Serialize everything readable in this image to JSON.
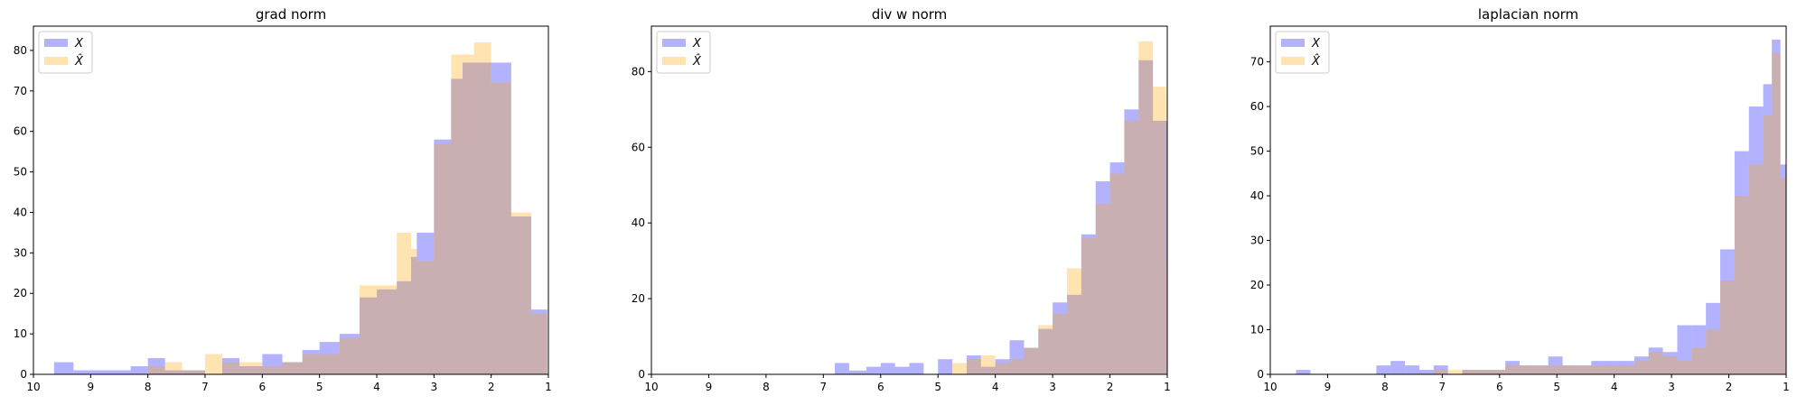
{
  "chart_data": [
    {
      "type": "bar",
      "title": "grad norm",
      "xlabel": "",
      "ylabel": "",
      "xlim": [
        10,
        1
      ],
      "ylim": [
        0,
        86
      ],
      "xticks": [
        10,
        9,
        8,
        7,
        6,
        5,
        4,
        3,
        2,
        1
      ],
      "yticks": [
        0,
        10,
        20,
        30,
        40,
        50,
        60,
        70,
        80
      ],
      "legend": {
        "placement": "top-left",
        "labels": [
          "X",
          "X̂"
        ]
      },
      "series": [
        {
          "name": "X",
          "color": "#0000ff",
          "bins": [
            [
              9.9,
              9.64,
              0
            ],
            [
              9.64,
              9.3,
              3
            ],
            [
              9.3,
              8.3,
              1
            ],
            [
              8.3,
              8.0,
              2
            ],
            [
              8.0,
              7.7,
              4
            ],
            [
              7.7,
              7.4,
              1
            ],
            [
              7.4,
              7.0,
              1
            ],
            [
              7.0,
              6.7,
              0
            ],
            [
              6.7,
              6.4,
              4
            ],
            [
              6.4,
              6.0,
              2
            ],
            [
              6.0,
              5.65,
              5
            ],
            [
              5.65,
              5.3,
              3
            ],
            [
              5.3,
              5.0,
              6
            ],
            [
              5.0,
              4.65,
              8
            ],
            [
              4.65,
              4.3,
              10
            ],
            [
              4.3,
              4.0,
              19
            ],
            [
              4.0,
              3.65,
              21
            ],
            [
              3.65,
              3.4,
              23
            ],
            [
              3.4,
              3.3,
              29
            ],
            [
              3.3,
              3.0,
              35
            ],
            [
              3.0,
              2.7,
              58
            ],
            [
              2.7,
              2.5,
              73
            ],
            [
              2.5,
              2.0,
              77
            ],
            [
              2.0,
              1.65,
              77
            ],
            [
              1.65,
              1.3,
              39
            ],
            [
              1.3,
              1.02,
              16
            ]
          ]
        },
        {
          "name": "X̂",
          "color": "#ffa500",
          "bins": [
            [
              8.0,
              7.7,
              2
            ],
            [
              7.7,
              7.4,
              3
            ],
            [
              7.4,
              7.0,
              1
            ],
            [
              7.0,
              6.7,
              5
            ],
            [
              6.7,
              6.4,
              3
            ],
            [
              6.4,
              6.0,
              3
            ],
            [
              6.0,
              5.65,
              2
            ],
            [
              5.65,
              5.3,
              3
            ],
            [
              5.3,
              5.0,
              5
            ],
            [
              5.0,
              4.65,
              5
            ],
            [
              4.65,
              4.3,
              9
            ],
            [
              4.3,
              4.0,
              22
            ],
            [
              4.0,
              3.65,
              22
            ],
            [
              3.65,
              3.4,
              35
            ],
            [
              3.4,
              3.3,
              31
            ],
            [
              3.3,
              3.0,
              28
            ],
            [
              3.0,
              2.7,
              57
            ],
            [
              2.7,
              2.5,
              79
            ],
            [
              2.5,
              2.3,
              79
            ],
            [
              2.3,
              2.0,
              82
            ],
            [
              2.0,
              1.65,
              72
            ],
            [
              1.65,
              1.3,
              40
            ],
            [
              1.3,
              1.02,
              15
            ]
          ]
        }
      ]
    },
    {
      "type": "bar",
      "title": "div w norm",
      "xlabel": "",
      "ylabel": "",
      "xlim": [
        10,
        1
      ],
      "ylim": [
        0,
        92
      ],
      "xticks": [
        10,
        9,
        8,
        7,
        6,
        5,
        4,
        3,
        2,
        1
      ],
      "yticks": [
        0,
        20,
        40,
        60,
        80
      ],
      "legend": {
        "placement": "top-left",
        "labels": [
          "X",
          "X̂"
        ]
      },
      "series": [
        {
          "name": "X",
          "color": "#0000ff",
          "bins": [
            [
              6.8,
              6.55,
              3
            ],
            [
              6.55,
              6.25,
              1
            ],
            [
              6.25,
              6.0,
              2
            ],
            [
              6.0,
              5.75,
              3
            ],
            [
              5.75,
              5.5,
              2
            ],
            [
              5.5,
              5.25,
              3
            ],
            [
              5.25,
              5.0,
              0
            ],
            [
              5.0,
              4.75,
              4
            ],
            [
              4.75,
              4.5,
              0
            ],
            [
              4.5,
              4.25,
              5
            ],
            [
              4.25,
              4.0,
              2
            ],
            [
              4.0,
              3.75,
              4
            ],
            [
              3.75,
              3.5,
              9
            ],
            [
              3.5,
              3.25,
              7
            ],
            [
              3.25,
              3.0,
              12
            ],
            [
              3.0,
              2.75,
              19
            ],
            [
              2.75,
              2.5,
              21
            ],
            [
              2.5,
              2.25,
              37
            ],
            [
              2.25,
              2.0,
              51
            ],
            [
              2.0,
              1.75,
              56
            ],
            [
              1.75,
              1.5,
              70
            ],
            [
              1.5,
              1.25,
              83
            ],
            [
              1.25,
              1.0,
              67
            ]
          ]
        },
        {
          "name": "X̂",
          "color": "#ffa500",
          "bins": [
            [
              4.75,
              4.5,
              3
            ],
            [
              4.5,
              4.25,
              4
            ],
            [
              4.25,
              4.0,
              5
            ],
            [
              4.0,
              3.75,
              3
            ],
            [
              3.75,
              3.5,
              4
            ],
            [
              3.5,
              3.25,
              7
            ],
            [
              3.25,
              3.0,
              13
            ],
            [
              3.0,
              2.75,
              16
            ],
            [
              2.75,
              2.5,
              28
            ],
            [
              2.5,
              2.25,
              36
            ],
            [
              2.25,
              2.0,
              45
            ],
            [
              2.0,
              1.75,
              53
            ],
            [
              1.75,
              1.5,
              67
            ],
            [
              1.5,
              1.25,
              88
            ],
            [
              1.25,
              1.02,
              76
            ],
            [
              1.02,
              0.98,
              30
            ]
          ]
        }
      ]
    },
    {
      "type": "bar",
      "title": "laplacian norm",
      "xlabel": "",
      "ylabel": "",
      "xlim": [
        10,
        1
      ],
      "ylim": [
        0,
        78
      ],
      "xticks": [
        10,
        9,
        8,
        7,
        6,
        5,
        4,
        3,
        2,
        1
      ],
      "yticks": [
        0,
        10,
        20,
        30,
        40,
        50,
        60,
        70
      ],
      "legend": {
        "placement": "top-left",
        "labels": [
          "X",
          "X̂"
        ]
      },
      "series": [
        {
          "name": "X",
          "color": "#0000ff",
          "bins": [
            [
              9.55,
              9.3,
              1
            ],
            [
              8.15,
              7.9,
              2
            ],
            [
              7.9,
              7.65,
              3
            ],
            [
              7.65,
              7.4,
              2
            ],
            [
              7.4,
              7.15,
              1
            ],
            [
              7.15,
              6.9,
              2
            ],
            [
              6.9,
              6.65,
              0
            ],
            [
              6.65,
              6.4,
              1
            ],
            [
              6.4,
              6.15,
              1
            ],
            [
              6.15,
              5.9,
              1
            ],
            [
              5.9,
              5.65,
              3
            ],
            [
              5.65,
              5.4,
              2
            ],
            [
              5.4,
              5.15,
              2
            ],
            [
              5.15,
              4.9,
              4
            ],
            [
              4.9,
              4.65,
              2
            ],
            [
              4.65,
              4.4,
              2
            ],
            [
              4.4,
              4.15,
              3
            ],
            [
              4.15,
              3.9,
              3
            ],
            [
              3.9,
              3.65,
              3
            ],
            [
              3.65,
              3.4,
              4
            ],
            [
              3.4,
              3.15,
              6
            ],
            [
              3.15,
              2.9,
              5
            ],
            [
              2.9,
              2.65,
              11
            ],
            [
              2.65,
              2.4,
              11
            ],
            [
              2.4,
              2.15,
              16
            ],
            [
              2.15,
              1.9,
              28
            ],
            [
              1.9,
              1.65,
              50
            ],
            [
              1.65,
              1.4,
              60
            ],
            [
              1.4,
              1.25,
              65
            ],
            [
              1.25,
              1.1,
              75
            ],
            [
              1.1,
              1.0,
              47
            ]
          ]
        },
        {
          "name": "X̂",
          "color": "#ffa500",
          "bins": [
            [
              7.15,
              6.9,
              1
            ],
            [
              6.9,
              6.65,
              1
            ],
            [
              6.65,
              6.4,
              1
            ],
            [
              6.4,
              6.15,
              1
            ],
            [
              6.15,
              5.9,
              1
            ],
            [
              5.9,
              5.65,
              2
            ],
            [
              5.65,
              5.4,
              2
            ],
            [
              5.4,
              5.15,
              2
            ],
            [
              5.15,
              4.9,
              2
            ],
            [
              4.9,
              4.65,
              2
            ],
            [
              4.65,
              4.4,
              2
            ],
            [
              4.4,
              4.15,
              2
            ],
            [
              4.15,
              3.9,
              2
            ],
            [
              3.9,
              3.65,
              2
            ],
            [
              3.65,
              3.4,
              3
            ],
            [
              3.4,
              3.15,
              5
            ],
            [
              3.15,
              2.9,
              4
            ],
            [
              2.9,
              2.65,
              3
            ],
            [
              2.65,
              2.4,
              6
            ],
            [
              2.4,
              2.15,
              10
            ],
            [
              2.15,
              1.9,
              21
            ],
            [
              1.9,
              1.65,
              40
            ],
            [
              1.65,
              1.4,
              47
            ],
            [
              1.4,
              1.25,
              58
            ],
            [
              1.25,
              1.1,
              72
            ],
            [
              1.1,
              1.0,
              44
            ]
          ]
        }
      ]
    }
  ]
}
